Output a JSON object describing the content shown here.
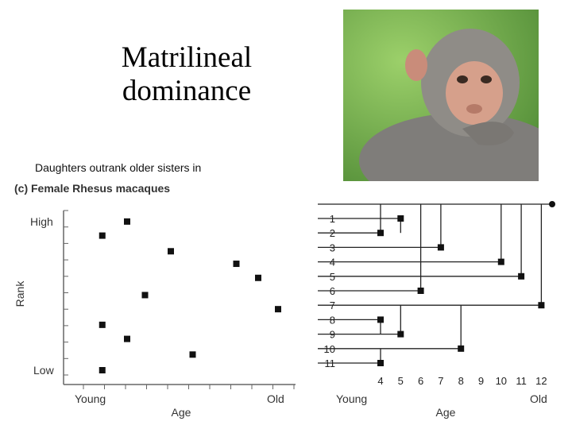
{
  "title_line1": "Matrilineal",
  "title_line2": "dominance",
  "caption": "Daughters outrank older sisters in",
  "figure_label": "(c) Female Rhesus macaques",
  "photo": {
    "subject": "rhesus-macaque-photo",
    "colors": {
      "background": "#6fa84a",
      "fur": "#8c8a86",
      "face": "#d9a48c"
    }
  },
  "scatter": {
    "ylabel": "Rank",
    "xlabel": "Age",
    "y_high": "High",
    "y_low": "Low",
    "x_young": "Young",
    "x_old": "Old"
  },
  "tree": {
    "xlabel": "Age",
    "x_young": "Young",
    "x_old": "Old",
    "rank_labels": [
      "1",
      "2",
      "3",
      "4",
      "5",
      "6",
      "7",
      "8",
      "9",
      "10",
      "11"
    ],
    "age_labels": [
      "4",
      "5",
      "6",
      "7",
      "8",
      "9",
      "10",
      "11",
      "12"
    ]
  },
  "chart_data": {
    "type": "scatter",
    "title": "",
    "xlabel": "Age",
    "ylabel": "Rank",
    "x_tick_labels": [
      "Young",
      "Old"
    ],
    "y_tick_labels": [
      "High",
      "Low"
    ],
    "x_range": [
      0,
      10
    ],
    "y_range": [
      0,
      10
    ],
    "points": [
      {
        "x": 1.35,
        "y": 8.6
      },
      {
        "x": 2.6,
        "y": 9.5
      },
      {
        "x": 4.8,
        "y": 7.6
      },
      {
        "x": 3.5,
        "y": 4.8
      },
      {
        "x": 1.35,
        "y": 2.9
      },
      {
        "x": 2.6,
        "y": 2.0
      },
      {
        "x": 5.9,
        "y": 1.0
      },
      {
        "x": 1.35,
        "y": 0.0
      },
      {
        "x": 8.1,
        "y": 6.8
      },
      {
        "x": 9.2,
        "y": 5.9
      },
      {
        "x": 10.2,
        "y": 3.9
      }
    ],
    "grid": false
  }
}
